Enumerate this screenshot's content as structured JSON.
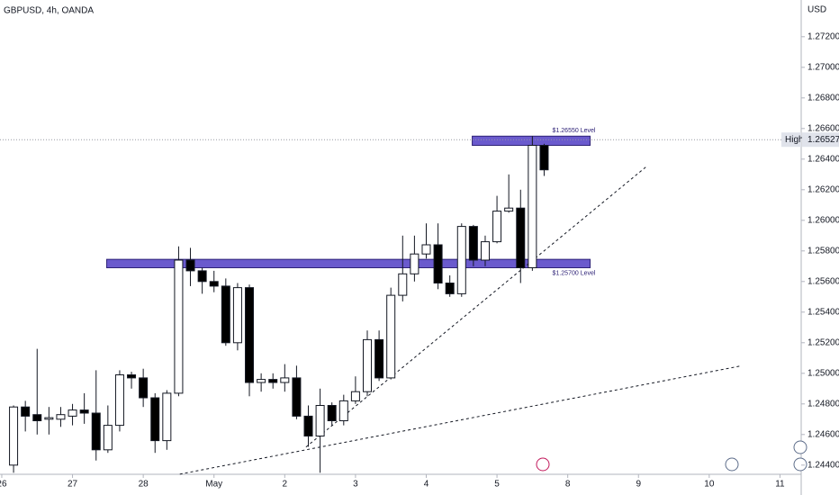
{
  "chart_data": {
    "type": "candlestick",
    "title": "GBPUSD, 4h, OANDA",
    "y_axis_label": "USD",
    "xlim": [
      -1.15,
      66.8
    ],
    "xticks": [
      {
        "value": -1,
        "label": "26"
      },
      {
        "value": 5,
        "label": "27"
      },
      {
        "value": 11,
        "label": "28"
      },
      {
        "value": 17,
        "label": "May"
      },
      {
        "value": 23,
        "label": "2"
      },
      {
        "value": 29,
        "label": "3"
      },
      {
        "value": 35,
        "label": "4"
      },
      {
        "value": 41,
        "label": "5"
      },
      {
        "value": 47,
        "label": "8"
      },
      {
        "value": 53,
        "label": "9"
      },
      {
        "value": 59,
        "label": "10"
      },
      {
        "value": 65,
        "label": "11"
      }
    ],
    "ylim": [
      1.2434,
      1.2744
    ],
    "yticks": [
      {
        "value": 1.272,
        "label": "1.27200"
      },
      {
        "value": 1.27,
        "label": "1.27000"
      },
      {
        "value": 1.268,
        "label": "1.26800"
      },
      {
        "value": 1.266,
        "label": "1.26600"
      },
      {
        "value": 1.264,
        "label": "1.26400"
      },
      {
        "value": 1.262,
        "label": "1.26200"
      },
      {
        "value": 1.26,
        "label": "1.26000"
      },
      {
        "value": 1.258,
        "label": "1.25800"
      },
      {
        "value": 1.256,
        "label": "1.25600"
      },
      {
        "value": 1.254,
        "label": "1.25400"
      },
      {
        "value": 1.252,
        "label": "1.25200"
      },
      {
        "value": 1.25,
        "label": "1.25000"
      },
      {
        "value": 1.248,
        "label": "1.24800"
      },
      {
        "value": 1.246,
        "label": "1.24600"
      },
      {
        "value": 1.244,
        "label": "1.24400"
      }
    ],
    "x": [
      0,
      1,
      2,
      3,
      4,
      5,
      6,
      7,
      8,
      9,
      10,
      11,
      12,
      13,
      14,
      15,
      16,
      17,
      18,
      19,
      20,
      21,
      22,
      23,
      24,
      25,
      26,
      27,
      28,
      29,
      30,
      31,
      32,
      33,
      34,
      35,
      36,
      37,
      38,
      39,
      40,
      41,
      42,
      43,
      44,
      45
    ],
    "open": [
      1.244,
      1.2478,
      1.2473,
      1.247,
      1.247,
      1.2472,
      1.2476,
      1.2474,
      1.245,
      1.2466,
      1.2499,
      1.2497,
      1.2484,
      1.2456,
      1.2487,
      1.2574,
      1.2567,
      1.256,
      1.2557,
      1.252,
      1.2556,
      1.2494,
      1.2496,
      1.2494,
      1.2497,
      1.2472,
      1.2459,
      1.2479,
      1.2469,
      1.2482,
      1.2488,
      1.2522,
      1.2497,
      1.2551,
      1.2565,
      1.2578,
      1.2584,
      1.2559,
      1.2552,
      1.2596,
      1.2574,
      1.2586,
      1.2606,
      1.2608,
      1.2569,
      1.2649
    ],
    "high": [
      1.2479,
      1.2482,
      1.2516,
      1.2478,
      1.2478,
      1.248,
      1.2487,
      1.2502,
      1.2479,
      1.2502,
      1.2501,
      1.2503,
      1.2487,
      1.2489,
      1.2583,
      1.2582,
      1.2569,
      1.2567,
      1.2562,
      1.2559,
      1.2558,
      1.25,
      1.25,
      1.2506,
      1.2505,
      1.2479,
      1.249,
      1.2481,
      1.2486,
      1.2498,
      1.2528,
      1.2528,
      1.2556,
      1.259,
      1.259,
      1.2598,
      1.2598,
      1.2564,
      1.2598,
      1.2597,
      1.259,
      1.2616,
      1.263,
      1.262,
      1.2655,
      1.265
    ],
    "low": [
      1.2435,
      1.2462,
      1.246,
      1.246,
      1.2465,
      1.2466,
      1.2467,
      1.2443,
      1.2448,
      1.2462,
      1.249,
      1.2478,
      1.2448,
      1.245,
      1.2485,
      1.2557,
      1.2552,
      1.2553,
      1.2518,
      1.2515,
      1.2485,
      1.2488,
      1.249,
      1.2488,
      1.247,
      1.2452,
      1.2435,
      1.2466,
      1.2466,
      1.248,
      1.2485,
      1.2495,
      1.2496,
      1.2547,
      1.256,
      1.2575,
      1.2555,
      1.255,
      1.255,
      1.257,
      1.257,
      1.2585,
      1.2605,
      1.2559,
      1.2567,
      1.2629
    ],
    "close": [
      1.2478,
      1.2472,
      1.2469,
      1.2471,
      1.2473,
      1.2476,
      1.2474,
      1.245,
      1.2466,
      1.2499,
      1.2497,
      1.2484,
      1.2456,
      1.2487,
      1.2574,
      1.2567,
      1.256,
      1.2557,
      1.252,
      1.2556,
      1.2494,
      1.2496,
      1.2494,
      1.2497,
      1.2472,
      1.2459,
      1.2479,
      1.2469,
      1.2482,
      1.2488,
      1.2522,
      1.2497,
      1.2551,
      1.2565,
      1.2578,
      1.2584,
      1.2559,
      1.2552,
      1.2596,
      1.2574,
      1.2586,
      1.2606,
      1.2608,
      1.2569,
      1.2649,
      1.2633
    ],
    "zones": [
      {
        "label": "$1.26550 Level",
        "top": 1.2655,
        "bottom": 1.2649,
        "x0": 38.9,
        "x1": 48.9
      },
      {
        "label": "$1.25700 Level",
        "top": 1.25745,
        "bottom": 1.2569,
        "x0": 7.9,
        "x1": 48.9
      }
    ],
    "trendlines": [
      {
        "x": [
          24.8,
          53.7
        ],
        "y": [
          1.24518,
          1.26353
        ]
      },
      {
        "x": [
          14.1,
          61.6
        ],
        "y": [
          1.24341,
          1.25047
        ]
      }
    ],
    "price_line": {
      "name": "High",
      "value": 1.26527,
      "label": "1.26527"
    }
  }
}
